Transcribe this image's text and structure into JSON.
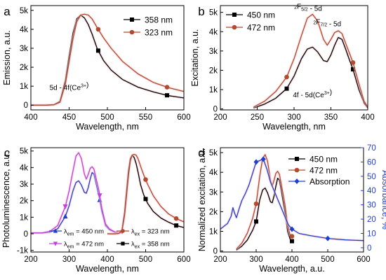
{
  "panels": [
    {
      "letter": "a",
      "xlabel": "Wavelength, nm",
      "ylabel": "Emission, a.u.",
      "xlim": [
        400,
        600
      ],
      "ylim": [
        -0.25,
        5.25
      ],
      "xticks": [
        400,
        450,
        500,
        550,
        600
      ],
      "xtick_labels": [
        "400",
        "450",
        "500",
        "550",
        "600"
      ],
      "yticks": [
        0,
        1,
        2,
        3,
        4,
        5
      ],
      "ytick_labels": [
        "0",
        "1k",
        "2k",
        "3k",
        "4k",
        "5k"
      ],
      "legend": {
        "position": "top-right",
        "entries": [
          {
            "label": "358 nm",
            "series": 0
          },
          {
            "label": "323 nm",
            "series": 1
          }
        ]
      },
      "annotations": [
        {
          "text": "5d - 4f(Ce",
          "sup": "3+",
          "tail": ")",
          "at": [
            450,
            0.8
          ]
        }
      ],
      "chart_data": {
        "type": "line",
        "series": [
          {
            "name": "358 nm",
            "color": "#000000",
            "marker": "square",
            "x": [
              400,
              420,
              430,
              438,
              445,
              450,
              455,
              460,
              465,
              470,
              475,
              480,
              487,
              495,
              505,
              520,
              540,
              560,
              580,
              600
            ],
            "y": [
              0,
              0,
              0.02,
              0.2,
              1.3,
              2.6,
              3.8,
              4.55,
              4.75,
              4.6,
              4.25,
              3.75,
              2.95,
              2.35,
              1.85,
              1.35,
              0.95,
              0.7,
              0.5,
              0.38
            ],
            "marker_x": [
              488,
              578
            ]
          },
          {
            "name": "323 nm",
            "color": "#b24a2e",
            "marker": "circle",
            "x": [
              400,
              420,
              430,
              438,
              445,
              450,
              455,
              460,
              465,
              470,
              475,
              480,
              488,
              495,
              505,
              520,
              540,
              560,
              580,
              600
            ],
            "y": [
              0,
              0,
              0.02,
              0.15,
              1.1,
              2.3,
              3.5,
              4.4,
              4.75,
              4.8,
              4.75,
              4.55,
              4.0,
              3.55,
              3.0,
              2.3,
              1.65,
              1.2,
              0.92,
              0.72
            ],
            "marker_x": [
              488,
              578
            ]
          }
        ]
      }
    },
    {
      "letter": "b",
      "xlabel": "Wavelength, nm",
      "ylabel": "Excitation, a.u.",
      "xlim": [
        200,
        400
      ],
      "ylim": [
        -0.05,
        5.35
      ],
      "xticks": [
        200,
        250,
        300,
        350,
        400
      ],
      "xtick_labels": [
        "200",
        "250",
        "300",
        "350",
        "400"
      ],
      "yticks": [
        0,
        1,
        2,
        3,
        4,
        5
      ],
      "ytick_labels": [
        "0",
        "1k",
        "2k",
        "3k",
        "4k",
        "5k"
      ],
      "legend": {
        "position": "top-left",
        "entries": [
          {
            "label": "450 nm",
            "series": 0
          },
          {
            "label": "472 nm",
            "series": 1
          }
        ]
      },
      "annotations": [
        {
          "text": "F",
          "pre": "2",
          "sub": "5/2",
          "tail": " - 5d",
          "at": [
            319,
            5.05
          ]
        },
        {
          "text": "F",
          "pre": "2",
          "sub": "7/2",
          "tail": " - 5d",
          "at": [
            345,
            4.25
          ]
        },
        {
          "text": "4f - 5d(Ce",
          "sup": "3+",
          "tail": ")",
          "at": [
            325,
            0.6
          ]
        }
      ],
      "chart_data": {
        "type": "line",
        "series": [
          {
            "name": "450 nm",
            "color": "#000000",
            "marker": "square",
            "x": [
              245,
              260,
              275,
              290,
              300,
              310,
              318,
              325,
              332,
              340,
              345,
              350,
              355,
              360,
              365,
              370,
              375,
              380,
              388,
              395,
              400
            ],
            "y": [
              0.05,
              0.25,
              0.55,
              1.05,
              1.7,
              2.6,
              3.1,
              3.2,
              2.95,
              2.5,
              2.45,
              2.8,
              3.3,
              3.7,
              3.6,
              3.1,
              2.55,
              2.05,
              1.0,
              0.3,
              0.05
            ],
            "marker_x": [
              290,
              380
            ]
          },
          {
            "name": "472 nm",
            "color": "#b24a2e",
            "marker": "circle",
            "x": [
              245,
              260,
              275,
              290,
              300,
              310,
              318,
              325,
              332,
              340,
              345,
              350,
              355,
              360,
              365,
              370,
              375,
              380,
              388,
              395,
              400
            ],
            "y": [
              0.1,
              0.4,
              0.9,
              1.65,
              2.6,
              3.8,
              4.7,
              4.9,
              4.55,
              3.6,
              3.3,
              3.6,
              3.95,
              4.05,
              3.9,
              3.4,
              2.9,
              2.4,
              1.3,
              0.4,
              0.1
            ],
            "marker_x": [
              290,
              380
            ]
          }
        ]
      }
    },
    {
      "letter": "c",
      "xlabel": "Wavelength, nm",
      "ylabel": "Photoluminescence, a.u.",
      "xlim": [
        200,
        600
      ],
      "ylim": [
        -1.1,
        5.2
      ],
      "xticks": [
        200,
        300,
        400,
        500,
        600
      ],
      "xtick_labels": [
        "200",
        "300",
        "400",
        "500",
        "600"
      ],
      "yticks": [
        -1,
        0,
        1,
        2,
        3,
        4,
        5
      ],
      "ytick_labels": [
        "-1k",
        "0",
        "1k",
        "2k",
        "3k",
        "4k",
        "5k"
      ],
      "legend": {
        "position": "bottom",
        "entries": [
          {
            "sym": "λ",
            "sub": "em",
            "label": " = 450 nm",
            "series": 0
          },
          {
            "sym": "λ",
            "sub": "em",
            "label": " = 472 nm",
            "series": 1
          },
          {
            "sym": "λ",
            "sub": "ex",
            "label": " = 323 nm",
            "series": 3
          },
          {
            "sym": "λ",
            "sub": "ex",
            "label": " = 358 nm",
            "series": 2
          }
        ]
      },
      "chart_data": {
        "type": "line",
        "series": [
          {
            "name": "λem = 450 nm",
            "color": "#1f3fd0",
            "marker": "triangle-up",
            "x": [
              200,
              230,
              250,
              270,
              290,
              300,
              310,
              318,
              325,
              332,
              340,
              345,
              350,
              355,
              360,
              365,
              370,
              378,
              385,
              395,
              405,
              420,
              440
            ],
            "y": [
              0.05,
              0.05,
              0.1,
              0.3,
              1.05,
              1.7,
              2.6,
              3.1,
              3.2,
              2.95,
              2.5,
              2.45,
              2.8,
              3.3,
              3.7,
              3.6,
              3.1,
              2.3,
              1.4,
              0.5,
              0.25,
              0.1,
              0.05
            ],
            "marker_x": [
              290,
              380
            ]
          },
          {
            "name": "λem = 472 nm",
            "color": "#c040e0",
            "marker": "triangle-down",
            "x": [
              200,
              230,
              250,
              270,
              290,
              300,
              310,
              318,
              325,
              332,
              340,
              345,
              350,
              355,
              360,
              365,
              370,
              378,
              385,
              395,
              405,
              420,
              440
            ],
            "y": [
              0.05,
              0.05,
              0.15,
              0.5,
              1.65,
              2.6,
              3.8,
              4.7,
              4.9,
              4.55,
              3.6,
              3.3,
              3.6,
              3.95,
              4.05,
              3.9,
              3.4,
              2.6,
              1.6,
              0.6,
              0.3,
              0.1,
              0.05
            ],
            "marker_x": [
              290,
              380
            ]
          },
          {
            "name": "λex = 358 nm",
            "color": "#000000",
            "marker": "square",
            "x": [
              400,
              420,
              430,
              438,
              445,
              450,
              455,
              460,
              465,
              470,
              475,
              480,
              487,
              495,
              505,
              520,
              540,
              560,
              580,
              600
            ],
            "y": [
              0,
              0,
              0.02,
              0.2,
              1.3,
              2.6,
              3.8,
              4.55,
              4.75,
              4.6,
              4.25,
              3.75,
              2.95,
              2.35,
              1.85,
              1.35,
              0.95,
              0.7,
              0.5,
              0.38
            ],
            "marker_x": [
              500,
              580
            ]
          },
          {
            "name": "λex = 323 nm",
            "color": "#b24a2e",
            "marker": "circle",
            "x": [
              400,
              420,
              430,
              438,
              445,
              450,
              455,
              460,
              465,
              470,
              475,
              480,
              488,
              495,
              505,
              520,
              540,
              560,
              580,
              600
            ],
            "y": [
              0,
              0,
              0.02,
              0.15,
              1.1,
              2.3,
              3.5,
              4.4,
              4.75,
              4.8,
              4.75,
              4.55,
              4.0,
              3.55,
              3.0,
              2.3,
              1.65,
              1.2,
              0.92,
              0.72
            ],
            "marker_x": [
              500,
              580
            ]
          }
        ]
      }
    },
    {
      "letter": "d",
      "xlabel": "Wavelength, a.u.",
      "ylabel": "Normalized excitation, a.u.",
      "ylabel_right": "Absorbance, %",
      "xlim": [
        200,
        600
      ],
      "ylim": [
        -0.05,
        5.25
      ],
      "ylim_right": [
        -3,
        70
      ],
      "xticks": [
        200,
        300,
        400,
        500,
        600
      ],
      "xtick_labels": [
        "200",
        "300",
        "400",
        "500",
        "600"
      ],
      "yticks": [
        0,
        1,
        2,
        3,
        4,
        5
      ],
      "ytick_labels": [
        "0",
        "1k",
        "2k",
        "3k",
        "4k",
        "5k"
      ],
      "yticks_right": [
        0,
        10,
        20,
        30,
        40,
        50,
        60,
        70
      ],
      "ytick_labels_right": [
        "0",
        "10",
        "20",
        "30",
        "40",
        "50",
        "60",
        "70"
      ],
      "legend": {
        "position": "top-right",
        "entries": [
          {
            "label": "450 nm",
            "series": 0
          },
          {
            "label": "472 nm",
            "series": 1
          },
          {
            "label": "Absorption",
            "series": 2
          }
        ]
      },
      "chart_data": {
        "type": "line",
        "series": [
          {
            "name": "450 nm",
            "color": "#000000",
            "marker": "square",
            "axis": "left",
            "x": [
              245,
              260,
              275,
              290,
              300,
              310,
              318,
              325,
              332,
              340,
              345,
              350,
              355,
              360,
              365,
              370,
              375,
              380,
              388,
              395,
              400
            ],
            "y": [
              0.05,
              0.25,
              0.55,
              1.05,
              1.5,
              2.6,
              3.1,
              3.2,
              2.95,
              2.5,
              2.45,
              2.8,
              3.3,
              3.7,
              3.6,
              3.1,
              2.55,
              2.05,
              1.0,
              0.6,
              0.5
            ],
            "marker_x": [
              300,
              400
            ]
          },
          {
            "name": "472 nm",
            "color": "#b24a2e",
            "marker": "circle",
            "axis": "left",
            "x": [
              245,
              260,
              275,
              290,
              300,
              310,
              318,
              325,
              332,
              340,
              345,
              350,
              355,
              360,
              365,
              370,
              375,
              380,
              388,
              395,
              400
            ],
            "y": [
              0.1,
              0.4,
              0.9,
              1.65,
              2.4,
              3.8,
              4.7,
              4.9,
              4.55,
              3.6,
              3.3,
              3.6,
              3.95,
              4.05,
              3.9,
              3.4,
              2.9,
              2.4,
              1.3,
              0.8,
              0.75
            ],
            "marker_x": [
              300,
              400
            ]
          },
          {
            "name": "Absorption",
            "color": "#1f3fd0",
            "marker": "diamond",
            "axis": "right",
            "x": [
              200,
              210,
              220,
              230,
              235,
              240,
              245,
              252,
              260,
              270,
              280,
              290,
              300,
              310,
              320,
              330,
              340,
              350,
              360,
              370,
              380,
              390,
              400,
              420,
              450,
              500,
              550,
              600
            ],
            "y": [
              13,
              15,
              17,
              22,
              28,
              24,
              21,
              27,
              33,
              38,
              44,
              52,
              60,
              61,
              62,
              55,
              46,
              40,
              34,
              28,
              22,
              16,
              13,
              10,
              8.5,
              6.5,
              5.5,
              5
            ],
            "marker_x": [
              300,
              320,
              400,
              500
            ]
          }
        ]
      }
    }
  ]
}
